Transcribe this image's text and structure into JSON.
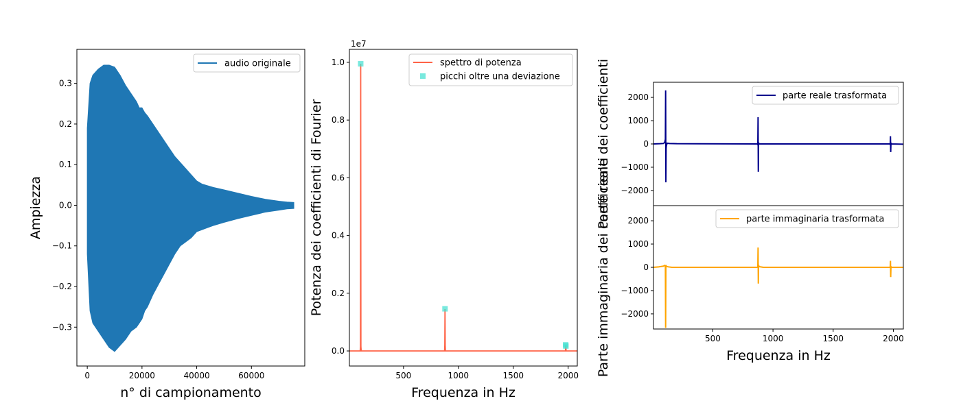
{
  "chart_data": [
    {
      "type": "line",
      "id": "audio",
      "xlabel": "n° di campionamento",
      "ylabel": "Ampiezza",
      "xlim": [
        -3800,
        79500
      ],
      "ylim": [
        -0.3957,
        0.3838
      ],
      "xticks": [
        0,
        20000,
        40000,
        60000
      ],
      "xtick_labels": [
        "0",
        "20000",
        "40000",
        "60000"
      ],
      "yticks": [
        -0.3,
        -0.2,
        -0.1,
        0.0,
        0.1,
        0.2,
        0.3
      ],
      "ytick_labels": [
        "−0.3",
        "−0.2",
        "−0.1",
        "0.0",
        "0.1",
        "0.2",
        "0.3"
      ],
      "series": [
        {
          "name": "audio originale",
          "color": "#1f77b4",
          "style": "filled envelope",
          "x": [
            0,
            1000,
            2000,
            4000,
            6000,
            8000,
            10000,
            12000,
            14000,
            16000,
            18000,
            19000,
            20000,
            21000,
            22000,
            24000,
            26000,
            28000,
            30000,
            32000,
            34000,
            36000,
            38000,
            40000,
            42000,
            44000,
            46000,
            50000,
            55000,
            60000,
            65000,
            70000,
            73000,
            75500
          ],
          "upper": [
            0.19,
            0.3,
            0.32,
            0.335,
            0.345,
            0.345,
            0.34,
            0.32,
            0.295,
            0.275,
            0.255,
            0.24,
            0.24,
            0.228,
            0.22,
            0.2,
            0.18,
            0.16,
            0.14,
            0.12,
            0.105,
            0.09,
            0.075,
            0.06,
            0.052,
            0.048,
            0.044,
            0.038,
            0.03,
            0.022,
            0.015,
            0.01,
            0.008,
            0.007
          ],
          "lower": [
            -0.12,
            -0.26,
            -0.29,
            -0.31,
            -0.33,
            -0.35,
            -0.36,
            -0.345,
            -0.33,
            -0.31,
            -0.3,
            -0.29,
            -0.28,
            -0.26,
            -0.25,
            -0.22,
            -0.195,
            -0.17,
            -0.145,
            -0.12,
            -0.1,
            -0.09,
            -0.08,
            -0.065,
            -0.06,
            -0.055,
            -0.05,
            -0.042,
            -0.033,
            -0.025,
            -0.017,
            -0.012,
            -0.009,
            -0.008
          ]
        }
      ],
      "legend": "upper right"
    },
    {
      "type": "line",
      "id": "power",
      "xlabel": "Frequenza in Hz",
      "ylabel": "Potenza dei coefficienti di Fourier",
      "offset_text": "1e7",
      "xlim": [
        7,
        2083
      ],
      "ylim": [
        -522000,
        10450000
      ],
      "xticks": [
        500,
        1000,
        1500,
        2000
      ],
      "xtick_labels": [
        "500",
        "1000",
        "1500",
        "2000"
      ],
      "yticks": [
        0,
        2000000,
        4000000,
        6000000,
        8000000,
        10000000
      ],
      "ytick_labels": [
        "0.0",
        "0.2",
        "0.4",
        "0.6",
        "0.8",
        "1.0"
      ],
      "series": [
        {
          "name": "spettro di potenza",
          "color": "#ff6347",
          "x": [
            7,
            105,
            108,
            110,
            112,
            115,
            874,
            876,
            878,
            880,
            882,
            1975,
            1977,
            1979,
            1981,
            2083
          ],
          "y": [
            0,
            0,
            150000,
            9950000,
            150000,
            0,
            0,
            200000,
            1450000,
            200000,
            0,
            0,
            100000,
            200000,
            0,
            0
          ]
        },
        {
          "name": "picchi oltre una deviazione",
          "color": "#40e0d0",
          "marker": "square",
          "points": [
            [
              110,
              9950000
            ],
            [
              878,
              1460000
            ],
            [
              1977,
              210000
            ],
            [
              1979,
              170000
            ]
          ]
        }
      ],
      "legend": "upper right"
    },
    {
      "type": "line",
      "id": "real",
      "ylabel": "Parte reale dei coefficienti",
      "xlim": [
        7,
        2083
      ],
      "ylim": [
        -2650,
        2650
      ],
      "yticks": [
        -2000,
        -1000,
        0,
        1000,
        2000
      ],
      "ytick_labels": [
        "−2000",
        "−1000",
        "0",
        "1000",
        "2000"
      ],
      "series": [
        {
          "name": "parte reale trasformata",
          "color": "#00008b",
          "x": [
            7,
            60,
            90,
            100,
            106,
            108,
            110,
            112,
            114,
            120,
            140,
            200,
            870,
            874,
            876,
            878,
            880,
            884,
            1970,
            1974,
            1976,
            1978,
            1980,
            1984,
            2083
          ],
          "y": [
            0,
            10,
            20,
            60,
            200,
            2300,
            -1650,
            -200,
            -80,
            30,
            20,
            10,
            0,
            -30,
            1150,
            -1200,
            60,
            0,
            0,
            -20,
            330,
            -350,
            40,
            0,
            -10
          ]
        }
      ],
      "legend": "upper right"
    },
    {
      "type": "line",
      "id": "imag",
      "xlabel": "Frequenza in Hz",
      "ylabel": "Parte immaginaria dei coefficienti",
      "xlim": [
        7,
        2083
      ],
      "ylim": [
        -2650,
        2650
      ],
      "xticks": [
        500,
        1000,
        1500,
        2000
      ],
      "xtick_labels": [
        "500",
        "1000",
        "1500",
        "2000"
      ],
      "yticks": [
        -2000,
        -1000,
        0,
        1000,
        2000
      ],
      "ytick_labels": [
        "−2000",
        "−1000",
        "0",
        "1000",
        "2000"
      ],
      "series": [
        {
          "name": "parte immaginaria trasformata",
          "color": "#ffa500",
          "x": [
            7,
            50,
            90,
            100,
            106,
            108,
            110,
            112,
            116,
            130,
            160,
            870,
            874,
            876,
            878,
            880,
            884,
            920,
            1970,
            1974,
            1976,
            1978,
            1980,
            1984,
            2083
          ],
          "y": [
            0,
            20,
            50,
            80,
            60,
            -2600,
            100,
            60,
            40,
            20,
            0,
            0,
            30,
            850,
            -700,
            100,
            30,
            0,
            0,
            20,
            280,
            -420,
            30,
            0,
            0
          ]
        }
      ],
      "legend": "upper right"
    }
  ]
}
